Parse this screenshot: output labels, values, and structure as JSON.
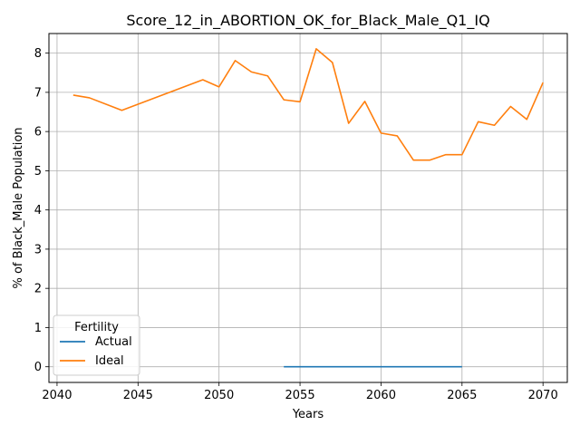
{
  "chart_data": {
    "type": "line",
    "title": "Score_12_in_ABORTION_OK_for_Black_Male_Q1_IQ",
    "xlabel": "Years",
    "ylabel": "% of Black_Male Population",
    "xlim": [
      2039.5,
      2071.5
    ],
    "ylim": [
      -0.4,
      8.5
    ],
    "xticks": [
      2040,
      2045,
      2050,
      2055,
      2060,
      2065,
      2070
    ],
    "yticks": [
      0,
      1,
      2,
      3,
      4,
      5,
      6,
      7,
      8
    ],
    "grid": true,
    "legend": {
      "title": "Fertility",
      "placement": "lower-left"
    },
    "series": [
      {
        "name": "Actual",
        "color": "#1f77b4",
        "x": [
          2054,
          2055,
          2056,
          2057,
          2058,
          2059,
          2060,
          2061,
          2062,
          2063,
          2064,
          2065
        ],
        "y": [
          0,
          0,
          0,
          0,
          0,
          0,
          0,
          0,
          0,
          0,
          0,
          0
        ]
      },
      {
        "name": "Ideal",
        "color": "#ff7f0e",
        "x": [
          2041,
          2042,
          2044,
          2049,
          2050,
          2051,
          2052,
          2053,
          2054,
          2055,
          2056,
          2057,
          2058,
          2059,
          2060,
          2061,
          2062,
          2063,
          2064,
          2065,
          2066,
          2067,
          2068,
          2069,
          2070
        ],
        "y": [
          6.93,
          6.86,
          6.54,
          7.32,
          7.14,
          7.81,
          7.52,
          7.42,
          6.81,
          6.76,
          8.11,
          7.76,
          6.21,
          6.77,
          5.96,
          5.89,
          5.27,
          5.27,
          5.41,
          5.41,
          6.25,
          6.16,
          6.64,
          6.31,
          7.25
        ]
      }
    ]
  }
}
